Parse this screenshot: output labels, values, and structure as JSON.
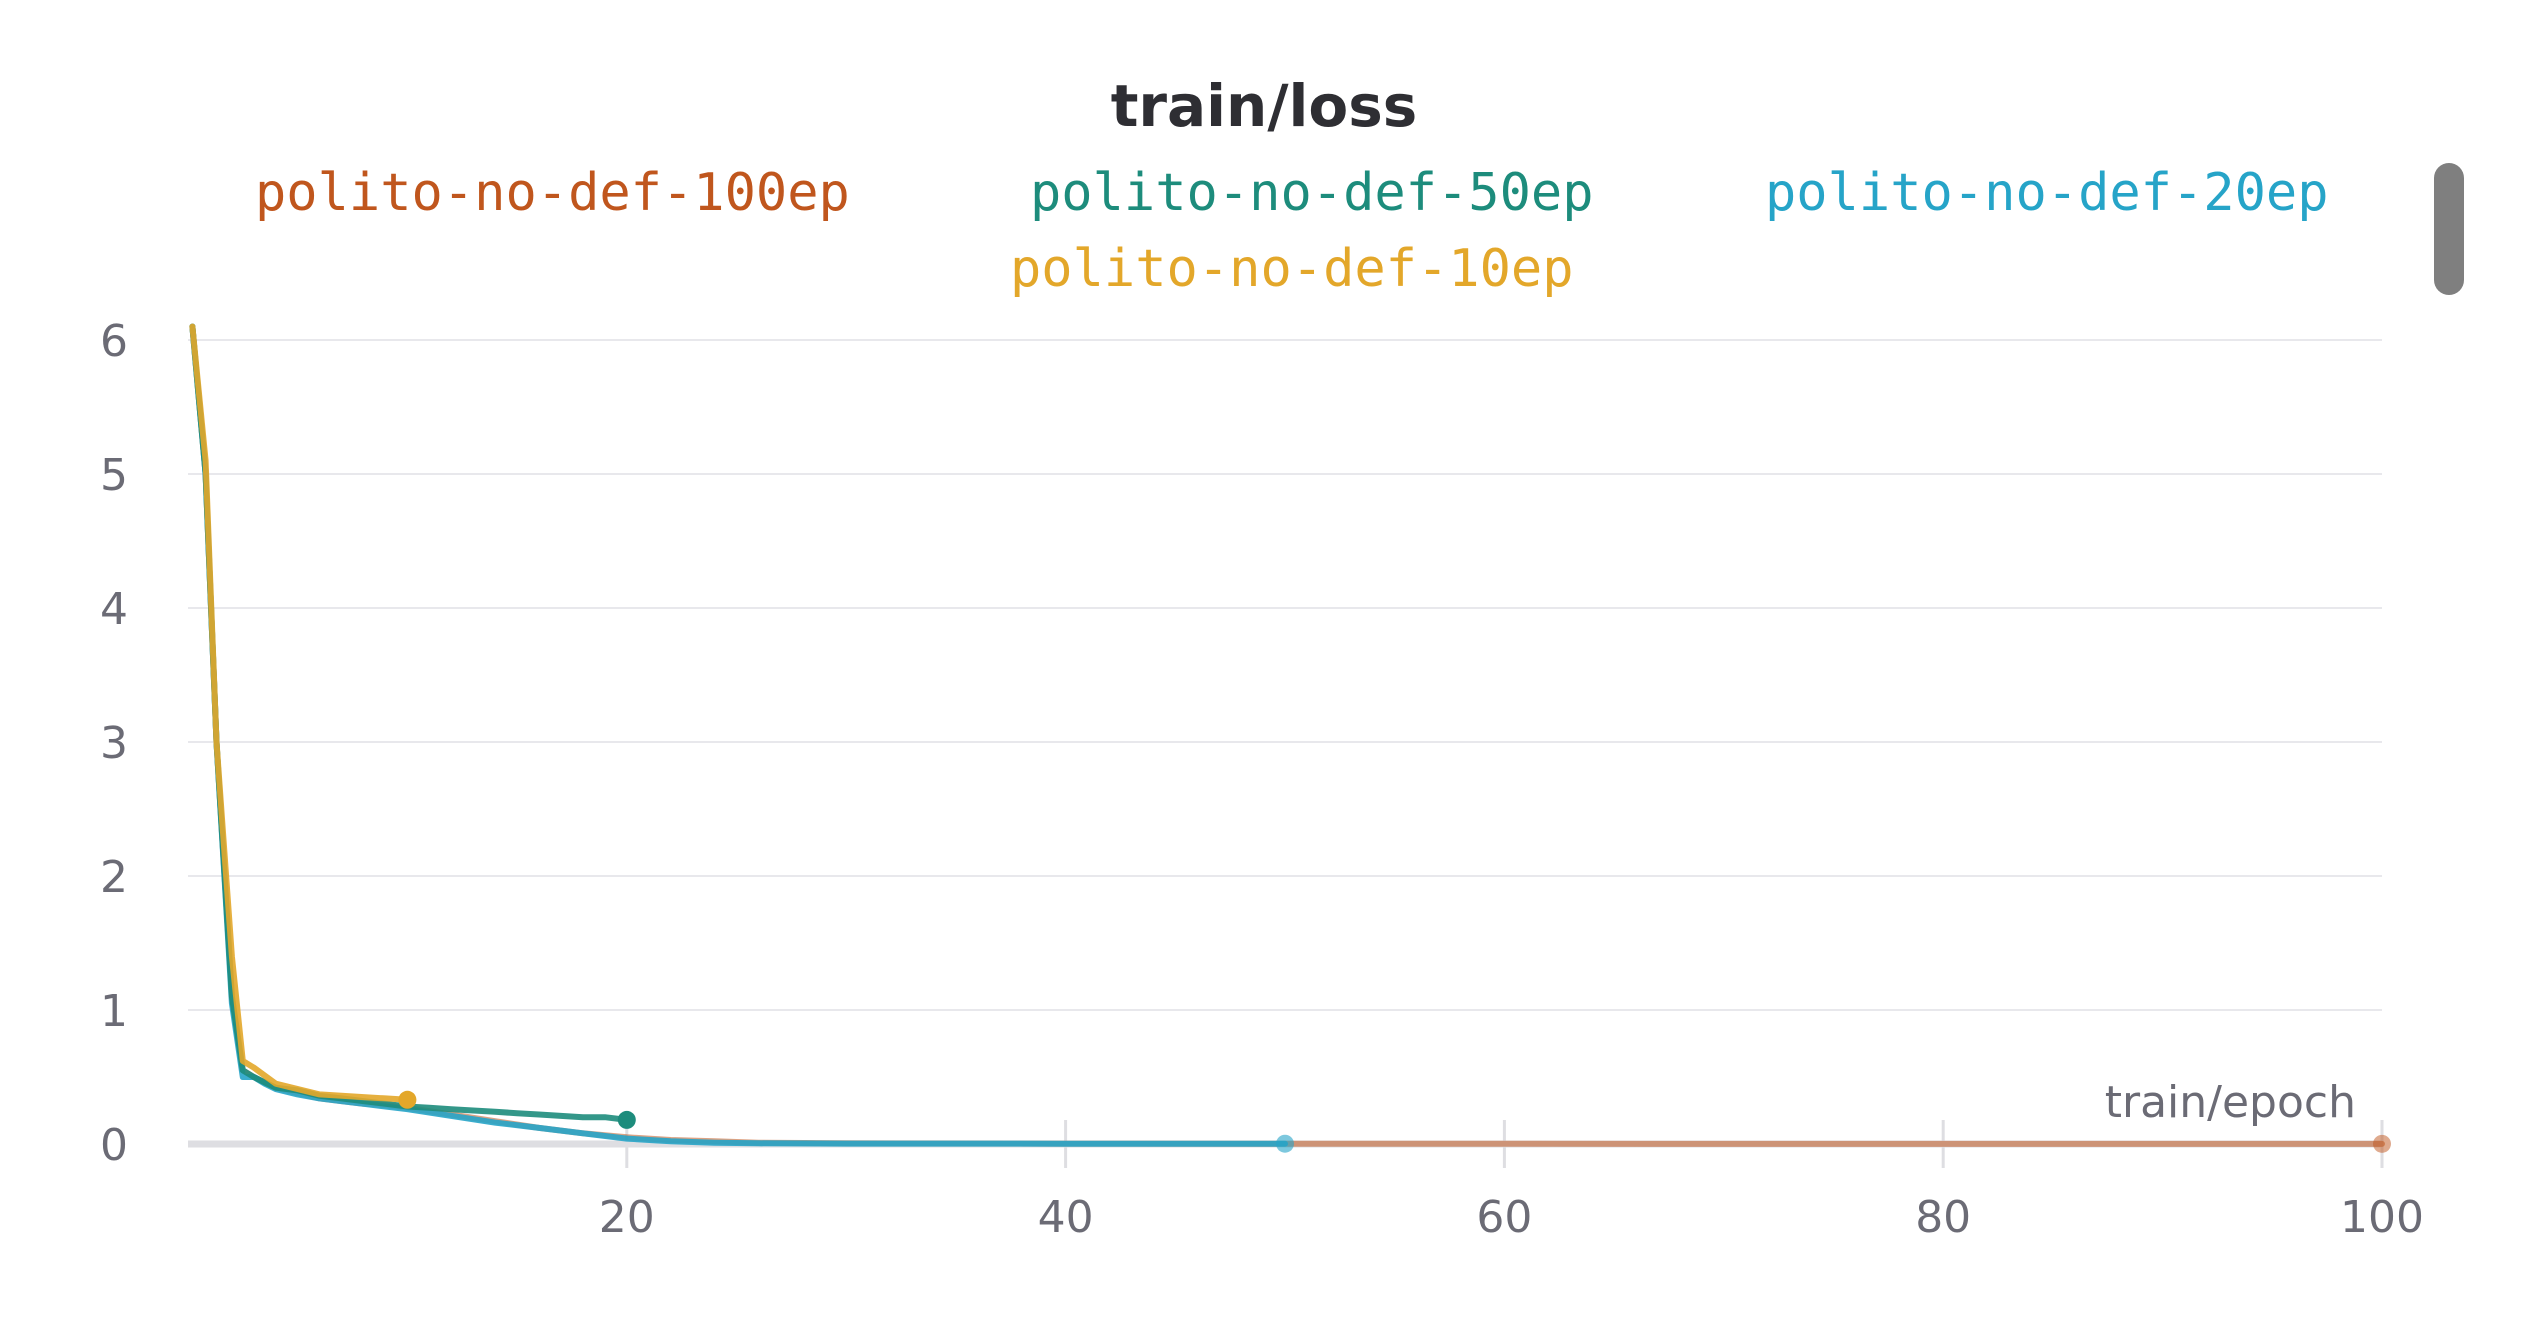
{
  "chart_data": {
    "type": "line",
    "title": "train/loss",
    "xlabel": "train/epoch",
    "ylabel": "",
    "xlim": [
      0,
      100
    ],
    "ylim": [
      0,
      6
    ],
    "xticks": [
      20,
      40,
      60,
      80,
      100
    ],
    "yticks": [
      0,
      1,
      2,
      3,
      4,
      5,
      6
    ],
    "grid": true,
    "legend_position": "top",
    "series": [
      {
        "name": "polito-no-def-100ep",
        "color": "#c0561d",
        "x": [
          0.2,
          0.8,
          1.3,
          2,
          2.5,
          3,
          3.5,
          4,
          5,
          6,
          7,
          8,
          9,
          10,
          12,
          14,
          16,
          18,
          20,
          22,
          24,
          26,
          30,
          40,
          50,
          60,
          70,
          80,
          90,
          100
        ],
        "y": [
          6.1,
          5.0,
          3.0,
          1.1,
          0.55,
          0.5,
          0.46,
          0.42,
          0.38,
          0.34,
          0.32,
          0.3,
          0.29,
          0.27,
          0.22,
          0.17,
          0.12,
          0.08,
          0.05,
          0.03,
          0.02,
          0.01,
          0.005,
          0.003,
          0.002,
          0.002,
          0.001,
          0.001,
          0.001,
          0.001
        ],
        "end_marker": true
      },
      {
        "name": "polito-no-def-50ep",
        "color": "#1d8c7c",
        "x": [
          0.2,
          0.8,
          1.3,
          2,
          2.5,
          3,
          3.5,
          4,
          5,
          6,
          7,
          8,
          9,
          10,
          11,
          12,
          13,
          14,
          15,
          16,
          17,
          18,
          19,
          20
        ],
        "y": [
          6.1,
          5.0,
          3.0,
          1.1,
          0.55,
          0.5,
          0.46,
          0.42,
          0.4,
          0.36,
          0.34,
          0.32,
          0.3,
          0.28,
          0.27,
          0.26,
          0.25,
          0.24,
          0.23,
          0.22,
          0.21,
          0.2,
          0.2,
          0.18
        ],
        "end_marker": true
      },
      {
        "name": "polito-no-def-20ep",
        "color": "#26a4c8",
        "x": [
          0.2,
          0.8,
          1.3,
          2,
          2.5,
          3,
          3.5,
          4,
          5,
          6,
          7,
          8,
          9,
          10,
          12,
          14,
          16,
          18,
          20,
          22,
          24,
          26,
          30,
          40,
          50
        ],
        "y": [
          6.1,
          5.0,
          3.0,
          1.05,
          0.5,
          0.5,
          0.45,
          0.41,
          0.37,
          0.34,
          0.32,
          0.3,
          0.28,
          0.26,
          0.21,
          0.16,
          0.12,
          0.08,
          0.04,
          0.02,
          0.01,
          0.005,
          0.003,
          0.002,
          0.002
        ],
        "end_marker": true
      },
      {
        "name": "polito-no-def-10ep",
        "color": "#e3a72a",
        "x": [
          0.2,
          0.8,
          1.3,
          2,
          2.5,
          3,
          4,
          5,
          6,
          7,
          8,
          9,
          10
        ],
        "y": [
          6.1,
          5.1,
          3.0,
          1.4,
          0.62,
          0.57,
          0.45,
          0.41,
          0.37,
          0.36,
          0.35,
          0.34,
          0.33
        ],
        "end_marker": true
      }
    ]
  }
}
